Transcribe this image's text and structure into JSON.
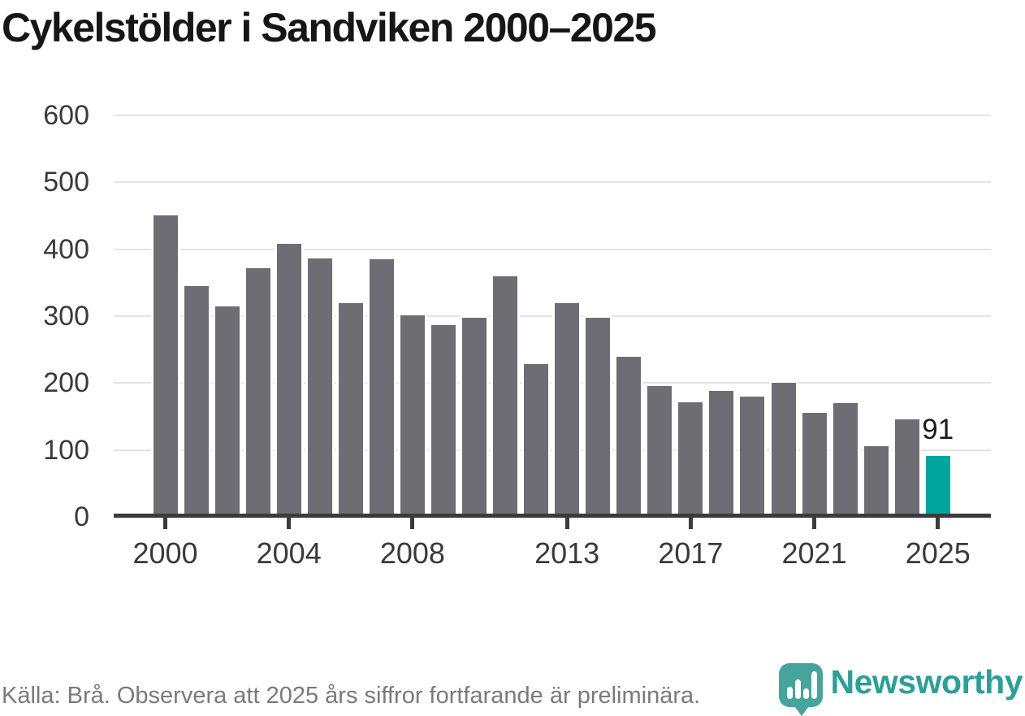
{
  "title": "Cykelstölder i Sandviken 2000–2025",
  "footer": {
    "source_note": "Källa: Brå. Observera att 2025 års siffror fortfarande är preliminära."
  },
  "branding": {
    "name": "Newsworthy",
    "logo_icon": "bar-chart-speech-bubble-icon",
    "logo_color": "#45a59c",
    "text_color": "#2ba098"
  },
  "colors": {
    "bar": "#6e6d73",
    "highlight": "#00a69c",
    "gridline": "#e3e3e3",
    "axis": "#3b3b3b",
    "title_text": "#161616",
    "tick_text": "#3a3a3a",
    "footer_text": "#7a7a7a",
    "annotation_text": "#1b1b1b"
  },
  "chart_data": {
    "type": "bar",
    "title": "Cykelstölder i Sandviken 2000–2025",
    "xlabel": "",
    "ylabel": "",
    "x": [
      2000,
      2001,
      2002,
      2003,
      2004,
      2005,
      2006,
      2007,
      2008,
      2009,
      2010,
      2011,
      2012,
      2013,
      2014,
      2015,
      2016,
      2017,
      2018,
      2019,
      2020,
      2021,
      2022,
      2023,
      2024,
      2025
    ],
    "values": [
      451,
      345,
      314,
      372,
      408,
      386,
      319,
      385,
      301,
      287,
      297,
      360,
      228,
      320,
      298,
      239,
      196,
      171,
      188,
      180,
      201,
      155,
      170,
      106,
      146,
      91
    ],
    "bar_color": "#6e6d73",
    "highlight": {
      "year": 2025,
      "value": 91,
      "label": "91",
      "color": "#00a69c"
    },
    "ylim": [
      0,
      600
    ],
    "yticks": [
      0,
      100,
      200,
      300,
      400,
      500,
      600
    ],
    "xticks": [
      2000,
      2004,
      2008,
      2013,
      2017,
      2021,
      2025
    ],
    "grid": "horizontal",
    "legend": "none"
  }
}
